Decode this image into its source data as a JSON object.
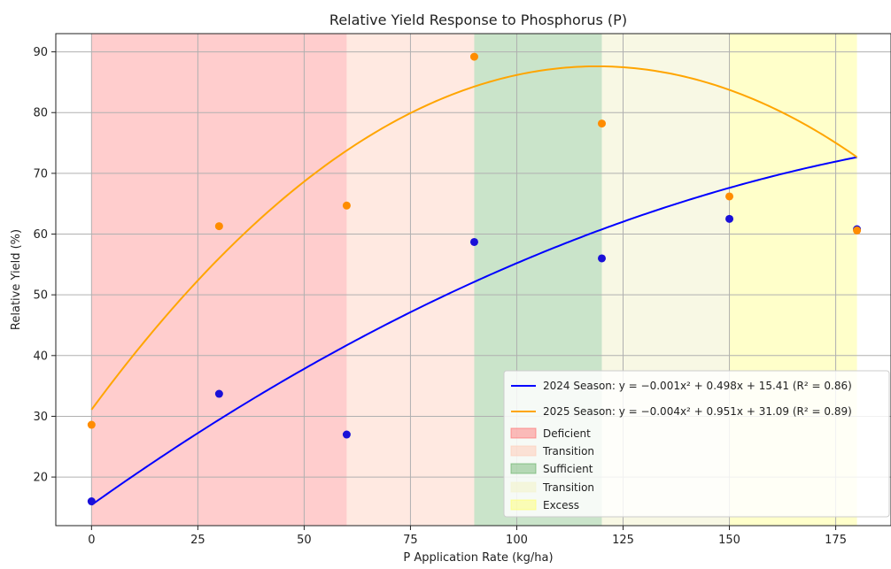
{
  "chart_data": {
    "type": "scatter",
    "title": "Relative Yield Response to Phosphorus (P)",
    "xlabel": "P Application Rate (kg/ha)",
    "ylabel": "Relative Yield (%)",
    "xlim": [
      -8.4,
      188
    ],
    "ylim": [
      12,
      93
    ],
    "xticks": [
      0,
      25,
      50,
      75,
      100,
      125,
      150,
      175
    ],
    "yticks": [
      20,
      30,
      40,
      50,
      60,
      70,
      80,
      90
    ],
    "grid": true,
    "legend_position": "lower-right",
    "zones": [
      {
        "name": "Deficient",
        "x0": 0,
        "x1": 60,
        "color": "#ff6666",
        "opacity": 0.33
      },
      {
        "name": "Transition",
        "x0": 60,
        "x1": 90,
        "color": "#ffc8b4",
        "opacity": 0.4
      },
      {
        "name": "Sufficient",
        "x0": 90,
        "x1": 120,
        "color": "#5aaa5a",
        "opacity": 0.32
      },
      {
        "name": "Transition",
        "x0": 120,
        "x1": 150,
        "color": "#f3f3d2",
        "opacity": 0.6
      },
      {
        "name": "Excess",
        "x0": 150,
        "x1": 180,
        "color": "#ffff66",
        "opacity": 0.35
      }
    ],
    "series": [
      {
        "name": "2024 Season",
        "color": "#0000ff",
        "point_color": "#1a10d8",
        "x": [
          0,
          30,
          60,
          90,
          120,
          150,
          180
        ],
        "y": [
          16.0,
          33.7,
          27.0,
          58.7,
          56.0,
          62.5,
          60.8
        ],
        "fit": {
          "a": -0.001,
          "b": 0.498,
          "c": 15.41,
          "r2": "0.86"
        },
        "legend_label": "2024 Season: y = −0.001x² + 0.498x + 15.41 (R² = 0.86)"
      },
      {
        "name": "2025 Season",
        "color": "#ffa500",
        "point_color": "#ff8c00",
        "x": [
          0,
          30,
          60,
          90,
          120,
          150,
          180
        ],
        "y": [
          28.6,
          61.3,
          64.7,
          89.2,
          78.2,
          66.2,
          60.6
        ],
        "fit": {
          "a": -0.004,
          "b": 0.951,
          "c": 31.09,
          "r2": "0.89"
        },
        "legend_label": "2025 Season: y = −0.004x² + 0.951x + 31.09 (R² = 0.89)"
      }
    ]
  }
}
